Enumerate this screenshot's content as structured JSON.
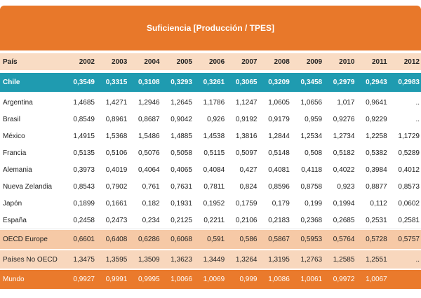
{
  "title": "Suficiencia [Producción / TPES]",
  "table": {
    "header": [
      "País",
      "2002",
      "2003",
      "2004",
      "2005",
      "2006",
      "2007",
      "2008",
      "2009",
      "2010",
      "2011",
      "2012"
    ],
    "rows": [
      [
        "Chile",
        "0,3549",
        "0,3315",
        "0,3108",
        "0,3293",
        "0,3261",
        "0,3065",
        "0,3209",
        "0,3458",
        "0,2979",
        "0,2943",
        "0,2983"
      ],
      [
        "Argentina",
        "1,4685",
        "1,4271",
        "1,2946",
        "1,2645",
        "1,1786",
        "1,1247",
        "1,0605",
        "1,0656",
        "1,017",
        "0,9641",
        ".."
      ],
      [
        "Brasil",
        "0,8549",
        "0,8961",
        "0,8687",
        "0,9042",
        "0,926",
        "0,9192",
        "0,9179",
        "0,959",
        "0,9276",
        "0,9229",
        ".."
      ],
      [
        "México",
        "1,4915",
        "1,5368",
        "1,5486",
        "1,4885",
        "1,4538",
        "1,3816",
        "1,2844",
        "1,2534",
        "1,2734",
        "1,2258",
        "1,1729"
      ],
      [
        "Francia",
        "0,5135",
        "0,5106",
        "0,5076",
        "0,5058",
        "0,5115",
        "0,5097",
        "0,5148",
        "0,508",
        "0,5182",
        "0,5382",
        "0,5289"
      ],
      [
        "Alemania",
        "0,3973",
        "0,4019",
        "0,4064",
        "0,4065",
        "0,4084",
        "0,427",
        "0,4081",
        "0,4118",
        "0,4022",
        "0,3984",
        "0,4012"
      ],
      [
        "Nueva Zelandia",
        "0,8543",
        "0,7902",
        "0,761",
        "0,7631",
        "0,7811",
        "0,824",
        "0,8596",
        "0,8758",
        "0,923",
        "0,8877",
        "0,8573"
      ],
      [
        "Japón",
        "0,1899",
        "0,1661",
        "0,182",
        "0,1931",
        "0,1952",
        "0,1759",
        "0,179",
        "0,199",
        "0,1994",
        "0,112",
        "0,0602"
      ],
      [
        "España",
        "0,2458",
        "0,2473",
        "0,234",
        "0,2125",
        "0,2211",
        "0,2106",
        "0,2183",
        "0,2368",
        "0,2685",
        "0,2531",
        "0,2581"
      ],
      [
        "OECD Europe",
        "0,6601",
        "0,6408",
        "0,6286",
        "0,6068",
        "0,591",
        "0,586",
        "0,5867",
        "0,5953",
        "0,5764",
        "0,5728",
        "0,5757"
      ],
      [
        "Países No OECD",
        "1,3475",
        "1,3595",
        "1,3509",
        "1,3623",
        "1,3449",
        "1,3264",
        "1,3195",
        "1,2763",
        "1,2585",
        "1,2551",
        ".."
      ],
      [
        "Mundo",
        "0,9927",
        "0,9991",
        "0,9995",
        "1,0066",
        "1,0069",
        "0,999",
        "1,0086",
        "1,0061",
        "0,9972",
        "1,0067",
        ""
      ]
    ]
  }
}
